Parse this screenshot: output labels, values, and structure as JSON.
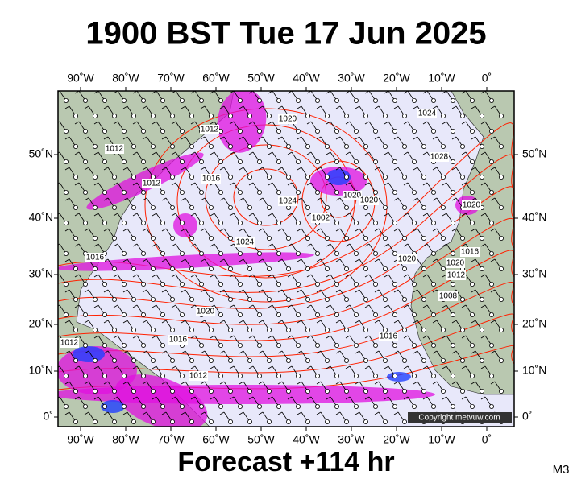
{
  "title": "1900 BST Tue 17 Jun 2025",
  "footer": "Forecast +114 hr",
  "corner": "M3",
  "copyright": "Copyright metvuw.com",
  "lon_labels": [
    "90˚W",
    "80˚W",
    "70˚W",
    "60˚W",
    "50˚W",
    "40˚W",
    "30˚W",
    "20˚W",
    "10˚W",
    "0˚"
  ],
  "lat_labels": [
    "50˚N",
    "40˚N",
    "30˚N",
    "20˚N",
    "10˚N",
    "0˚"
  ],
  "isobar_labels": [
    "1024",
    "1012",
    "1012",
    "1020",
    "1028",
    "1012",
    "1016",
    "1024",
    "1020",
    "1020",
    "1020",
    "1002",
    "1024",
    "1016",
    "1020",
    "1016",
    "1020",
    "1012",
    "1008",
    "1020",
    "1016",
    "1012",
    "1016",
    "1012"
  ]
}
